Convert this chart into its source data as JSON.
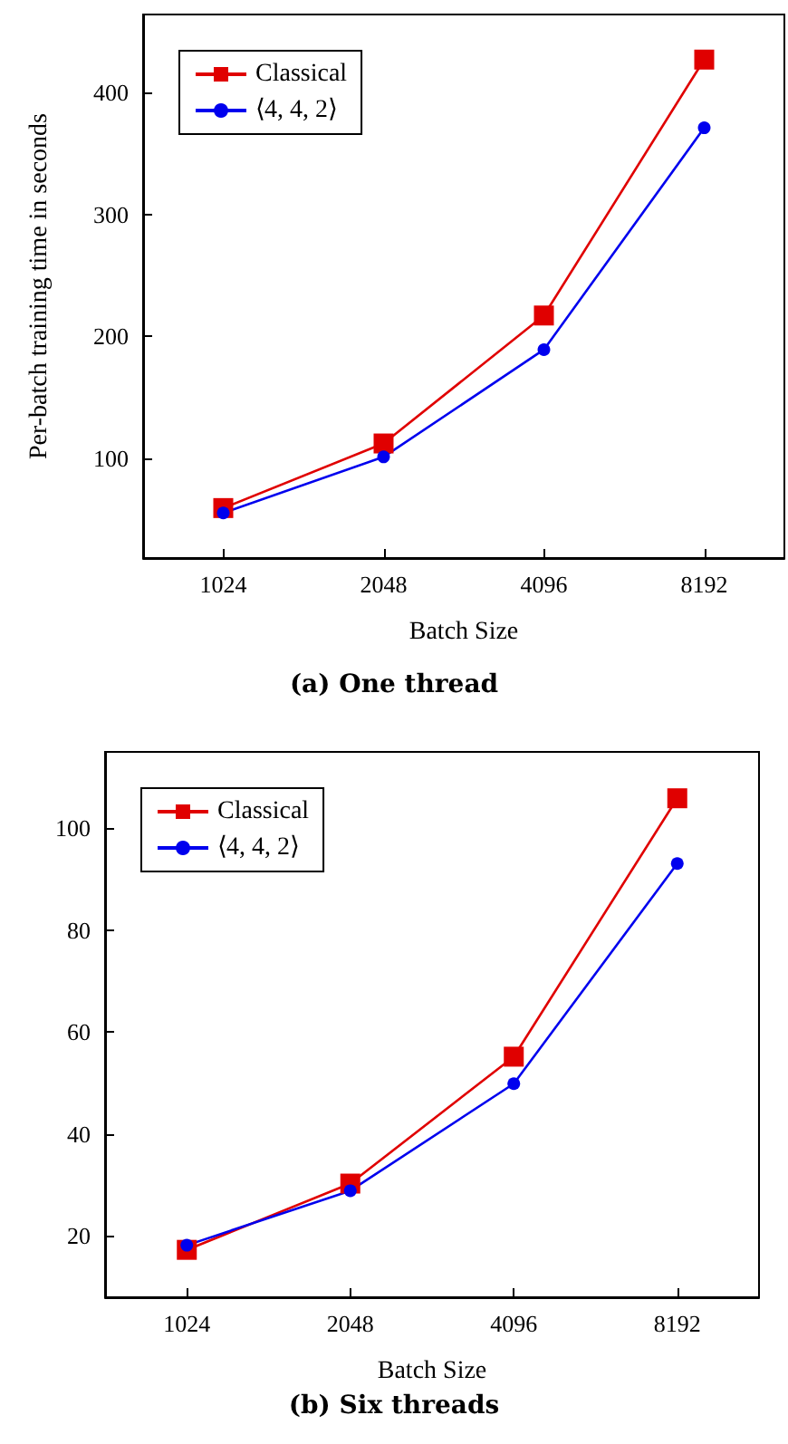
{
  "chart_data": [
    {
      "type": "line",
      "title": "(a) One thread",
      "xlabel": "Batch Size",
      "ylabel": "Per-batch training time in seconds",
      "categories": [
        "1024",
        "2048",
        "4096",
        "8192"
      ],
      "ylim": [
        18,
        464
      ],
      "yticks": [
        100,
        200,
        300,
        400
      ],
      "legend": "top left",
      "grid": false,
      "series": [
        {
          "name": "Classical",
          "color": "#e00000",
          "marker": "square",
          "values": [
            59,
            112,
            217,
            427
          ]
        },
        {
          "name": "⟨4, 4, 2⟩",
          "color": "#0000ee",
          "marker": "circle",
          "values": [
            55,
            101,
            189,
            371
          ]
        }
      ]
    },
    {
      "type": "line",
      "title": "(b) Six threads",
      "xlabel": "Batch Size",
      "categories": [
        "1024",
        "2048",
        "4096",
        "8192"
      ],
      "ylim": [
        8,
        115
      ],
      "yticks": [
        20,
        40,
        60,
        80,
        100
      ],
      "legend": "top left",
      "grid": false,
      "series": [
        {
          "name": "Classical",
          "color": "#e00000",
          "marker": "square",
          "values": [
            17.3,
            30.3,
            55.2,
            105.9
          ]
        },
        {
          "name": "⟨4, 4, 2⟩",
          "color": "#0000ee",
          "marker": "circle",
          "values": [
            18.2,
            28.9,
            49.9,
            93.1
          ]
        }
      ]
    }
  ]
}
